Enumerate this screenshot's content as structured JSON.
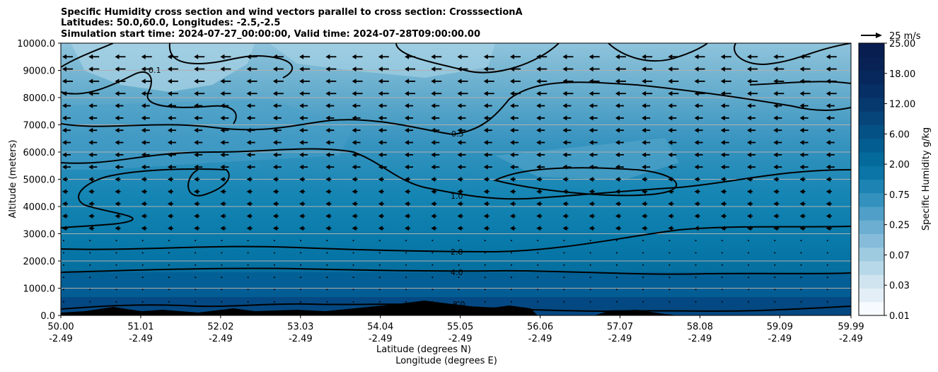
{
  "chart_data": {
    "type": "contour",
    "title_lines": [
      "Specific Humidity cross section and wind vectors parallel to cross section: CrosssectionA",
      "Latitudes: 50.0,60.0, Longitudes: -2.5,-2.5",
      "Simulation start time: 2024-07-27_00:00:00, Valid time: 2024-07-28T09:00:00.00"
    ],
    "ylabel": "Altitude (meters)",
    "xlabel_lat": "Latitude (degrees N)",
    "xlabel_lon": "Longitude (degrees E)",
    "ylim": [
      0,
      10000
    ],
    "y_ticks": [
      "0.0",
      "1000.0",
      "2000.0",
      "3000.0",
      "4000.0",
      "5000.0",
      "6000.0",
      "7000.0",
      "8000.0",
      "9000.0",
      "10000.0"
    ],
    "y_tick_values": [
      0,
      1000,
      2000,
      3000,
      4000,
      5000,
      6000,
      7000,
      8000,
      9000,
      10000
    ],
    "xlim": [
      50.0,
      59.99
    ],
    "x_ticks": [
      {
        "lat": "50.00",
        "lon": "-2.49",
        "value": 50.0
      },
      {
        "lat": "51.01",
        "lon": "-2.49",
        "value": 51.01
      },
      {
        "lat": "52.02",
        "lon": "-2.49",
        "value": 52.02
      },
      {
        "lat": "53.03",
        "lon": "-2.49",
        "value": 53.03
      },
      {
        "lat": "54.04",
        "lon": "-2.49",
        "value": 54.04
      },
      {
        "lat": "55.05",
        "lon": "-2.49",
        "value": 55.05
      },
      {
        "lat": "56.06",
        "lon": "-2.49",
        "value": 56.06
      },
      {
        "lat": "57.07",
        "lon": "-2.49",
        "value": 57.07
      },
      {
        "lat": "58.08",
        "lon": "-2.49",
        "value": 58.08
      },
      {
        "lat": "59.09",
        "lon": "-2.49",
        "value": 59.09
      },
      {
        "lat": "59.99",
        "lon": "-2.49",
        "value": 59.99
      }
    ],
    "colorbar_label": "Specific Humidity g/kg",
    "colorbar_ticks": [
      "0.01",
      "0.03",
      "0.07",
      "0.25",
      "0.75",
      "2.00",
      "6.00",
      "12.00",
      "18.00",
      "25.00"
    ],
    "quiver_key_label": "25 m/s",
    "contour_lines": [
      {
        "level": 8.0,
        "label": "8.0",
        "alt_m": 350
      },
      {
        "level": 4.0,
        "label": "4.0",
        "alt_m": 1550
      },
      {
        "level": 2.0,
        "label": "2.0",
        "alt_m": 2300
      },
      {
        "level": 1.0,
        "label": "1.0",
        "alt_m": 4200
      },
      {
        "level": 0.5,
        "label": "0.5",
        "alt_m": 6700
      },
      {
        "level": 0.1,
        "label": "0.1",
        "alt_m": 9200
      }
    ],
    "colors": {
      "dark_navy": "#08306b",
      "deep": "#045a8d",
      "mid": "#0a7aab",
      "light_mid": "#2b8cbe",
      "pale": "#74b5d3",
      "palest": "#a6d0e4",
      "terrain": "#000000"
    }
  }
}
